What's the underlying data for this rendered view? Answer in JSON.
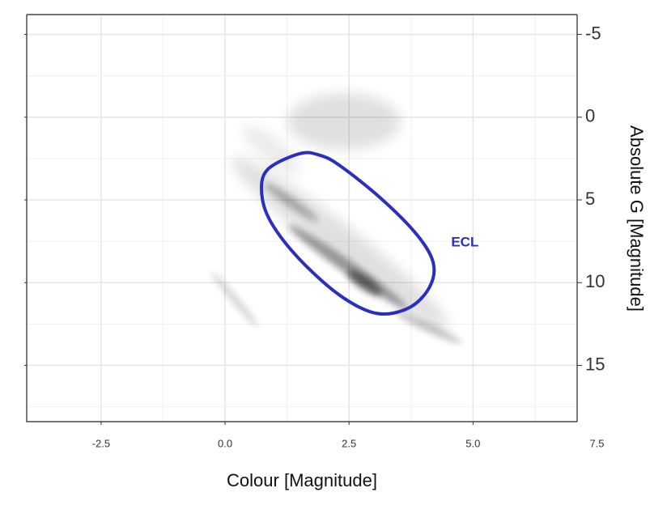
{
  "chart_data": {
    "type": "contour",
    "x_label": "Colour [Magnitude]",
    "y_label": "Absolute G [Magnitude]",
    "xlim": [
      -4.0,
      7.1
    ],
    "xticks": [
      {
        "value": -2.5,
        "label": "-2.5"
      },
      {
        "value": 0,
        "label": "0.0"
      },
      {
        "value": 2.5,
        "label": "2.5"
      },
      {
        "value": 5,
        "label": "5.0"
      },
      {
        "value": 7.5,
        "label": "7.5"
      }
    ],
    "ylim": [
      -6.2,
      18.4
    ],
    "y_reversed": true,
    "yticks": [
      -5,
      0,
      5,
      10,
      15
    ],
    "grid": true,
    "series": [
      {
        "name": "ECL",
        "color": "#2b2fbf",
        "x": [
          1.5,
          0.85,
          0.74,
          0.93,
          1.5,
          2.32,
          3.06,
          3.71,
          4.12,
          4.2,
          3.87,
          3.14,
          2.32,
          1.91,
          1.5
        ],
        "y": [
          2.21,
          3.19,
          4.66,
          6.37,
          8.58,
          10.78,
          11.86,
          11.52,
          10.29,
          8.82,
          7.11,
          4.9,
          2.94,
          2.3,
          2.21
        ]
      }
    ]
  }
}
